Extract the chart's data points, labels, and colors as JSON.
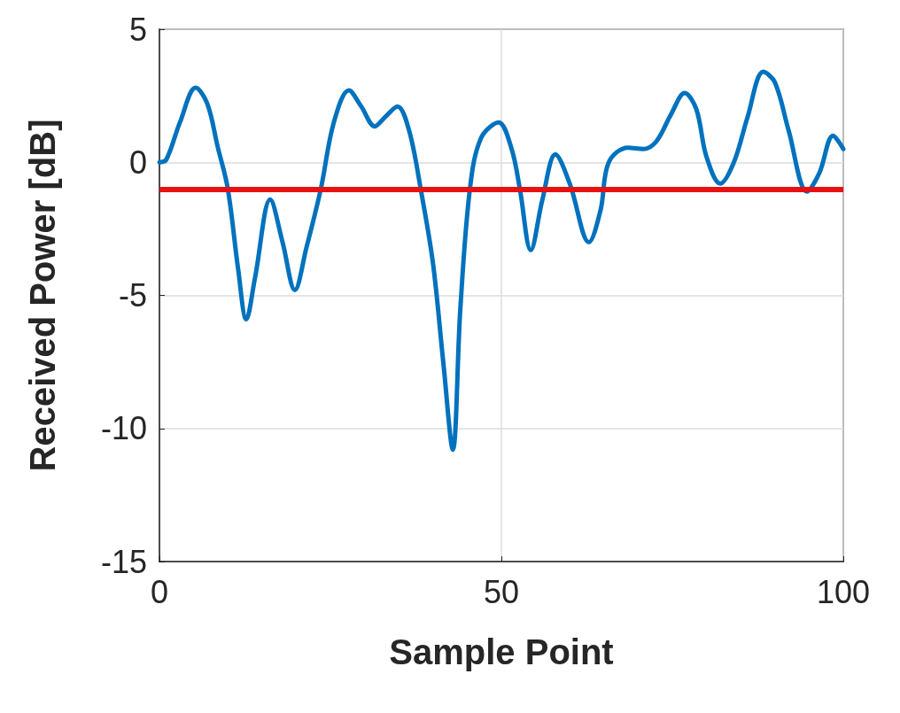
{
  "chart_data": {
    "type": "line",
    "xlabel": "Sample Point",
    "ylabel": "Received Power [dB]",
    "xlim": [
      0,
      100
    ],
    "ylim": [
      -15,
      5
    ],
    "xticks": [
      0,
      50,
      100
    ],
    "yticks": [
      -15,
      -10,
      -5,
      0,
      5
    ],
    "grid": true,
    "series": [
      {
        "color": "#0072bd",
        "x": [
          0,
          1,
          3,
          5.3,
          7,
          8.5,
          10,
          11.5,
          12.7,
          14,
          16.2,
          18,
          19.8,
          21.5,
          23.6,
          25.5,
          27.7,
          29.5,
          31.5,
          33,
          34.8,
          36.5,
          38.2,
          40,
          41.5,
          42.9,
          44,
          45.4,
          47,
          49.6,
          51.5,
          52.7,
          54.3,
          56,
          57.9,
          60,
          62.8,
          64.5,
          65.7,
          68.5,
          70.8,
          72.7,
          74.8,
          76.8,
          78.5,
          80,
          82,
          84,
          86,
          88.3,
          90,
          92,
          94.7,
          96.5,
          98.5,
          100
        ],
        "values": [
          0,
          0.1,
          1.5,
          2.8,
          2.2,
          0.6,
          -1,
          -4,
          -5.9,
          -4.3,
          -1.4,
          -3,
          -4.8,
          -3.2,
          -1,
          1.5,
          2.7,
          2.1,
          1.35,
          1.7,
          2.1,
          1.2,
          -1,
          -3.8,
          -7.5,
          -10.8,
          -5.5,
          -1,
          0.9,
          1.5,
          0.5,
          -1,
          -3.3,
          -1.4,
          0.3,
          -0.8,
          -3.0,
          -1.8,
          0,
          0.55,
          0.5,
          0.8,
          1.8,
          2.6,
          2.0,
          0.2,
          -0.8,
          0,
          1.7,
          3.4,
          3.0,
          1.2,
          -1.1,
          -0.4,
          1.0,
          0.5
        ]
      }
    ],
    "ref_lines": [
      {
        "axis": "y",
        "value": -1,
        "color": "#e81010"
      }
    ]
  }
}
